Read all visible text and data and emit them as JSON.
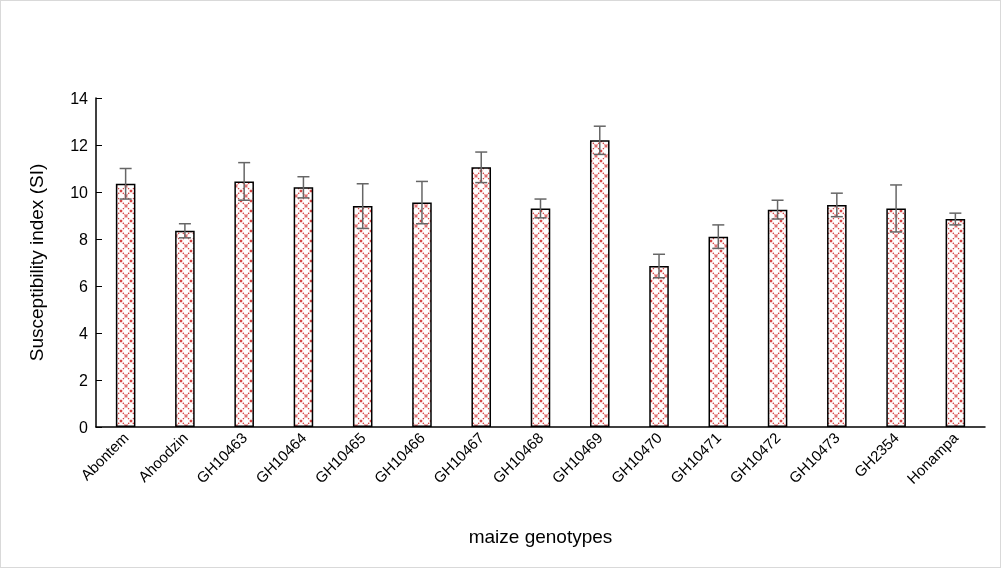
{
  "chart_data": {
    "type": "bar",
    "xlabel": "maize genotypes",
    "ylabel": "Susceptibility index (SI)",
    "categories": [
      "Abontem",
      "Ahoodzin",
      "GH10463",
      "GH10464",
      "GH10465",
      "GH10466",
      "GH10467",
      "GH10468",
      "GH10469",
      "GH10470",
      "GH10471",
      "GH10472",
      "GH10473",
      "GH2354",
      "Honampa"
    ],
    "values": [
      10.35,
      8.35,
      10.45,
      10.2,
      9.4,
      9.55,
      11.05,
      9.3,
      12.2,
      6.85,
      8.1,
      9.25,
      9.45,
      9.3,
      8.85
    ],
    "errors": [
      0.65,
      0.3,
      0.8,
      0.45,
      0.95,
      0.9,
      0.65,
      0.4,
      0.6,
      0.5,
      0.5,
      0.4,
      0.5,
      1.0,
      0.25
    ],
    "ylim": [
      0,
      14
    ],
    "yticks": [
      0,
      2,
      4,
      6,
      8,
      10,
      12,
      14
    ]
  }
}
